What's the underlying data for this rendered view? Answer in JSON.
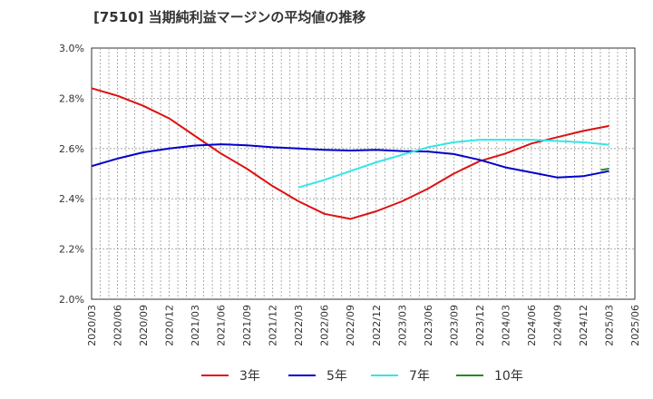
{
  "chart_data": {
    "type": "line",
    "title": "[7510]  当期純利益マージンの平均値の推移",
    "xlabel": "",
    "ylabel": "",
    "x_ticks": [
      "2020/03",
      "2020/06",
      "2020/09",
      "2020/12",
      "2021/03",
      "2021/06",
      "2021/09",
      "2021/12",
      "2022/03",
      "2022/06",
      "2022/09",
      "2022/12",
      "2023/03",
      "2023/06",
      "2023/09",
      "2023/12",
      "2024/03",
      "2024/06",
      "2024/09",
      "2024/12",
      "2025/03",
      "2025/06"
    ],
    "y_ticks": [
      "2.0%",
      "2.2%",
      "2.4%",
      "2.6%",
      "2.8%",
      "3.0%"
    ],
    "ylim": [
      2.0,
      3.0
    ],
    "grid": true,
    "legend_position": "bottom",
    "series": [
      {
        "name": "3年",
        "color": "#dd1111",
        "start_index": 0,
        "values": [
          2.84,
          2.81,
          2.77,
          2.72,
          2.65,
          2.58,
          2.52,
          2.45,
          2.39,
          2.34,
          2.32,
          2.35,
          2.39,
          2.44,
          2.5,
          2.55,
          2.58,
          2.62,
          2.645,
          2.67,
          2.69
        ]
      },
      {
        "name": "5年",
        "color": "#0000cc",
        "start_index": 0,
        "values": [
          2.53,
          2.56,
          2.585,
          2.6,
          2.612,
          2.617,
          2.613,
          2.605,
          2.6,
          2.595,
          2.592,
          2.595,
          2.59,
          2.588,
          2.578,
          2.555,
          2.525,
          2.505,
          2.485,
          2.49,
          2.51
        ]
      },
      {
        "name": "7年",
        "color": "#33e6e6",
        "start_index": 8,
        "values": [
          2.445,
          2.475,
          2.51,
          2.545,
          2.575,
          2.605,
          2.625,
          2.635,
          2.635,
          2.635,
          2.63,
          2.625,
          2.615
        ]
      },
      {
        "name": "10年",
        "color": "#228b22",
        "start_index": 20,
        "values": [
          2.52
        ]
      }
    ]
  }
}
